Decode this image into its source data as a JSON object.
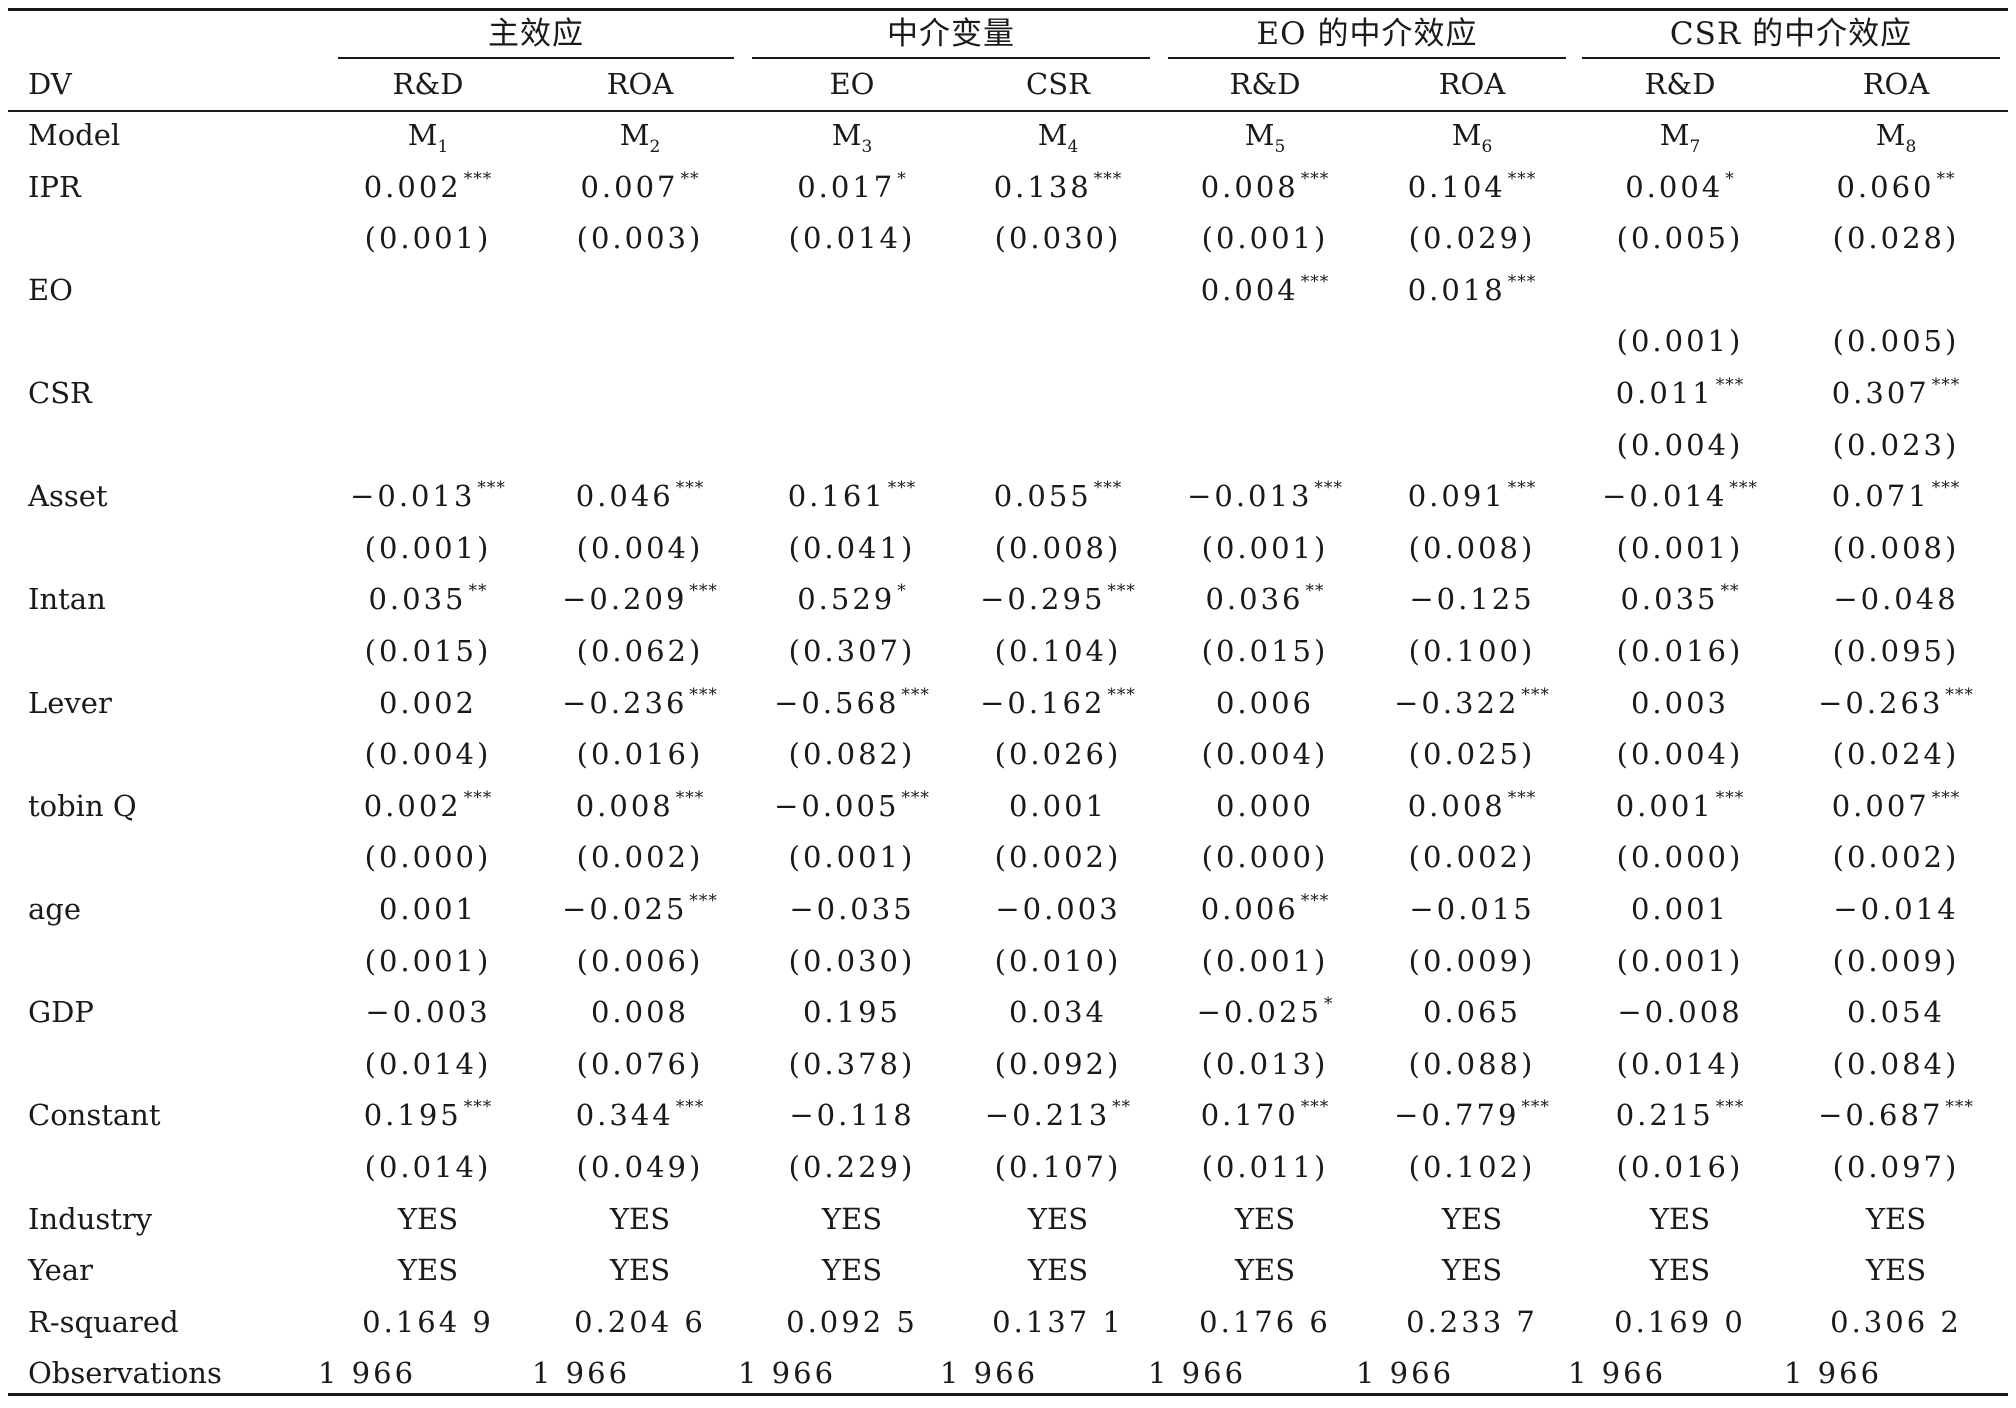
{
  "table": {
    "groups": [
      {
        "label": "主效应",
        "span": [
          0,
          1
        ]
      },
      {
        "label": "中介变量",
        "span": [
          2,
          3
        ]
      },
      {
        "label": "EO 的中介效应",
        "span": [
          4,
          5
        ]
      },
      {
        "label": "CSR 的中介效应",
        "span": [
          6,
          7
        ]
      }
    ],
    "dv_label": "DV",
    "columns": [
      "R&D",
      "ROA",
      "EO",
      "CSR",
      "R&D",
      "ROA",
      "R&D",
      "ROA"
    ],
    "model_label": "Model",
    "models": [
      {
        "base": "M",
        "sub": "1"
      },
      {
        "base": "M",
        "sub": "2"
      },
      {
        "base": "M",
        "sub": "3"
      },
      {
        "base": "M",
        "sub": "4"
      },
      {
        "base": "M",
        "sub": "5"
      },
      {
        "base": "M",
        "sub": "6"
      },
      {
        "base": "M",
        "sub": "7"
      },
      {
        "base": "M",
        "sub": "8"
      }
    ],
    "rows": [
      {
        "label": "IPR",
        "cells": [
          {
            "v": "0.002",
            "s": "***"
          },
          {
            "v": "0.007",
            "s": "**"
          },
          {
            "v": "0.017",
            "s": "*"
          },
          {
            "v": "0.138",
            "s": "***"
          },
          {
            "v": "0.008",
            "s": "***"
          },
          {
            "v": "0.104",
            "s": "***"
          },
          {
            "v": "0.004",
            "s": "*"
          },
          {
            "v": "0.060",
            "s": "**"
          }
        ]
      },
      {
        "label": "",
        "cells": [
          {
            "v": "(0.001)"
          },
          {
            "v": "(0.003)"
          },
          {
            "v": "(0.014)"
          },
          {
            "v": "(0.030)"
          },
          {
            "v": "(0.001)"
          },
          {
            "v": "(0.029)"
          },
          {
            "v": "(0.005)"
          },
          {
            "v": "(0.028)"
          }
        ]
      },
      {
        "label": "EO",
        "cells": [
          null,
          null,
          null,
          null,
          {
            "v": "0.004",
            "s": "***"
          },
          {
            "v": "0.018",
            "s": "***"
          },
          null,
          null
        ]
      },
      {
        "label": "",
        "cells": [
          null,
          null,
          null,
          null,
          null,
          null,
          {
            "v": "(0.001)"
          },
          {
            "v": "(0.005)"
          }
        ]
      },
      {
        "label": "CSR",
        "cells": [
          null,
          null,
          null,
          null,
          null,
          null,
          {
            "v": "0.011",
            "s": "***"
          },
          {
            "v": "0.307",
            "s": "***"
          }
        ]
      },
      {
        "label": "",
        "cells": [
          null,
          null,
          null,
          null,
          null,
          null,
          {
            "v": "(0.004)"
          },
          {
            "v": "(0.023)"
          }
        ]
      },
      {
        "label": "Asset",
        "cells": [
          {
            "v": "−0.013",
            "s": "***"
          },
          {
            "v": "0.046",
            "s": "***"
          },
          {
            "v": "0.161",
            "s": "***"
          },
          {
            "v": "0.055",
            "s": "***"
          },
          {
            "v": "−0.013",
            "s": "***"
          },
          {
            "v": "0.091",
            "s": "***"
          },
          {
            "v": "−0.014",
            "s": "***"
          },
          {
            "v": "0.071",
            "s": "***"
          }
        ]
      },
      {
        "label": "",
        "cells": [
          {
            "v": "(0.001)"
          },
          {
            "v": "(0.004)"
          },
          {
            "v": "(0.041)"
          },
          {
            "v": "(0.008)"
          },
          {
            "v": "(0.001)"
          },
          {
            "v": "(0.008)"
          },
          {
            "v": "(0.001)"
          },
          {
            "v": "(0.008)"
          }
        ]
      },
      {
        "label": "Intan",
        "cells": [
          {
            "v": "0.035",
            "s": "**"
          },
          {
            "v": "−0.209",
            "s": "***"
          },
          {
            "v": "0.529",
            "s": "*"
          },
          {
            "v": "−0.295",
            "s": "***"
          },
          {
            "v": "0.036",
            "s": "**"
          },
          {
            "v": "−0.125"
          },
          {
            "v": "0.035",
            "s": "**"
          },
          {
            "v": "−0.048"
          }
        ]
      },
      {
        "label": "",
        "cells": [
          {
            "v": "(0.015)"
          },
          {
            "v": "(0.062)"
          },
          {
            "v": "(0.307)"
          },
          {
            "v": "(0.104)"
          },
          {
            "v": "(0.015)"
          },
          {
            "v": "(0.100)"
          },
          {
            "v": "(0.016)"
          },
          {
            "v": "(0.095)"
          }
        ]
      },
      {
        "label": "Lever",
        "cells": [
          {
            "v": "0.002"
          },
          {
            "v": "−0.236",
            "s": "***"
          },
          {
            "v": "−0.568",
            "s": "***"
          },
          {
            "v": "−0.162",
            "s": "***"
          },
          {
            "v": "0.006"
          },
          {
            "v": "−0.322",
            "s": "***"
          },
          {
            "v": "0.003"
          },
          {
            "v": "−0.263",
            "s": "***"
          }
        ]
      },
      {
        "label": "",
        "cells": [
          {
            "v": "(0.004)"
          },
          {
            "v": "(0.016)"
          },
          {
            "v": "(0.082)"
          },
          {
            "v": "(0.026)"
          },
          {
            "v": "(0.004)"
          },
          {
            "v": "(0.025)"
          },
          {
            "v": "(0.004)"
          },
          {
            "v": "(0.024)"
          }
        ]
      },
      {
        "label": "tobin Q",
        "cells": [
          {
            "v": "0.002",
            "s": "***"
          },
          {
            "v": "0.008",
            "s": "***"
          },
          {
            "v": "−0.005",
            "s": "***"
          },
          {
            "v": "0.001"
          },
          {
            "v": "0.000"
          },
          {
            "v": "0.008",
            "s": "***"
          },
          {
            "v": "0.001",
            "s": "***"
          },
          {
            "v": "0.007",
            "s": "***"
          }
        ]
      },
      {
        "label": "",
        "cells": [
          {
            "v": "(0.000)"
          },
          {
            "v": "(0.002)"
          },
          {
            "v": "(0.001)"
          },
          {
            "v": "(0.002)"
          },
          {
            "v": "(0.000)"
          },
          {
            "v": "(0.002)"
          },
          {
            "v": "(0.000)"
          },
          {
            "v": "(0.002)"
          }
        ]
      },
      {
        "label": "age",
        "cells": [
          {
            "v": "0.001"
          },
          {
            "v": "−0.025",
            "s": "***"
          },
          {
            "v": "−0.035"
          },
          {
            "v": "−0.003"
          },
          {
            "v": "0.006",
            "s": "***"
          },
          {
            "v": "−0.015"
          },
          {
            "v": "0.001"
          },
          {
            "v": "−0.014"
          }
        ]
      },
      {
        "label": "",
        "cells": [
          {
            "v": "(0.001)"
          },
          {
            "v": "(0.006)"
          },
          {
            "v": "(0.030)"
          },
          {
            "v": "(0.010)"
          },
          {
            "v": "(0.001)"
          },
          {
            "v": "(0.009)"
          },
          {
            "v": "(0.001)"
          },
          {
            "v": "(0.009)"
          }
        ]
      },
      {
        "label": "GDP",
        "cells": [
          {
            "v": "−0.003"
          },
          {
            "v": "0.008"
          },
          {
            "v": "0.195"
          },
          {
            "v": "0.034"
          },
          {
            "v": "−0.025",
            "s": "*"
          },
          {
            "v": "0.065"
          },
          {
            "v": "−0.008"
          },
          {
            "v": "0.054"
          }
        ]
      },
      {
        "label": "",
        "cells": [
          {
            "v": "(0.014)"
          },
          {
            "v": "(0.076)"
          },
          {
            "v": "(0.378)"
          },
          {
            "v": "(0.092)"
          },
          {
            "v": "(0.013)"
          },
          {
            "v": "(0.088)"
          },
          {
            "v": "(0.014)"
          },
          {
            "v": "(0.084)"
          }
        ]
      },
      {
        "label": "Constant",
        "cells": [
          {
            "v": "0.195",
            "s": "***"
          },
          {
            "v": "0.344",
            "s": "***"
          },
          {
            "v": "−0.118"
          },
          {
            "v": "−0.213",
            "s": "**"
          },
          {
            "v": "0.170",
            "s": "***"
          },
          {
            "v": "−0.779",
            "s": "***"
          },
          {
            "v": "0.215",
            "s": "***"
          },
          {
            "v": "−0.687",
            "s": "***"
          }
        ]
      },
      {
        "label": "",
        "cells": [
          {
            "v": "(0.014)"
          },
          {
            "v": "(0.049)"
          },
          {
            "v": "(0.229)"
          },
          {
            "v": "(0.107)"
          },
          {
            "v": "(0.011)"
          },
          {
            "v": "(0.102)"
          },
          {
            "v": "(0.016)"
          },
          {
            "v": "(0.097)"
          }
        ]
      },
      {
        "label": "Industry",
        "kind": "text",
        "cells": [
          {
            "v": "YES"
          },
          {
            "v": "YES"
          },
          {
            "v": "YES"
          },
          {
            "v": "YES"
          },
          {
            "v": "YES"
          },
          {
            "v": "YES"
          },
          {
            "v": "YES"
          },
          {
            "v": "YES"
          }
        ]
      },
      {
        "label": "Year",
        "kind": "text",
        "cells": [
          {
            "v": "YES"
          },
          {
            "v": "YES"
          },
          {
            "v": "YES"
          },
          {
            "v": "YES"
          },
          {
            "v": "YES"
          },
          {
            "v": "YES"
          },
          {
            "v": "YES"
          },
          {
            "v": "YES"
          }
        ]
      },
      {
        "label": "R-squared",
        "cells": [
          {
            "v": "0.164 9"
          },
          {
            "v": "0.204 6"
          },
          {
            "v": "0.092 5"
          },
          {
            "v": "0.137 1"
          },
          {
            "v": "0.176 6"
          },
          {
            "v": "0.233 7"
          },
          {
            "v": "0.169 0"
          },
          {
            "v": "0.306 2"
          }
        ]
      },
      {
        "label": "Observations",
        "kind": "obs",
        "cells": [
          {
            "v": "1 966"
          },
          {
            "v": "1 966"
          },
          {
            "v": "1 966"
          },
          {
            "v": "1 966"
          },
          {
            "v": "1 966"
          },
          {
            "v": "1 966"
          },
          {
            "v": "1 966"
          },
          {
            "v": "1 966"
          }
        ]
      }
    ]
  }
}
